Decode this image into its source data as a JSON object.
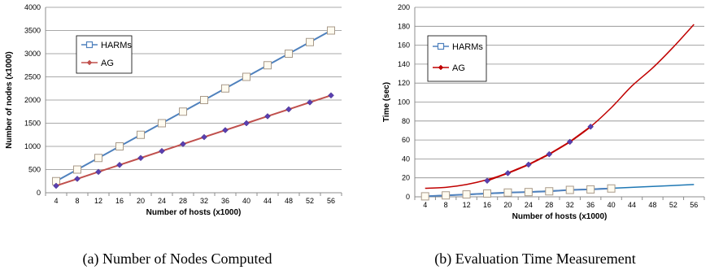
{
  "chart_data": [
    {
      "type": "line",
      "caption": "(a) Number of Nodes Computed",
      "title": "",
      "xlabel": "Number of hosts (x1000)",
      "ylabel": "Number of nodes (x1000)",
      "categories": [
        "4",
        "8",
        "12",
        "16",
        "20",
        "24",
        "28",
        "32",
        "36",
        "40",
        "44",
        "48",
        "52",
        "56"
      ],
      "ylim": [
        0,
        4000
      ],
      "yticks": [
        0,
        500,
        1000,
        1500,
        2000,
        2500,
        3000,
        3500,
        4000
      ],
      "grid": "horizontal",
      "legend": "left",
      "series": [
        {
          "name": "HARMs",
          "color": "#4f81bd",
          "marker": "square",
          "values": [
            250,
            500,
            750,
            1000,
            1250,
            1500,
            1750,
            2000,
            2250,
            2500,
            2750,
            3000,
            3250,
            3500
          ]
        },
        {
          "name": "AG",
          "color": "#c0504d",
          "marker": "diamond",
          "values": [
            150,
            300,
            450,
            600,
            750,
            900,
            1050,
            1200,
            1350,
            1500,
            1650,
            1800,
            1950,
            2100
          ]
        }
      ]
    },
    {
      "type": "line",
      "caption": "(b) Evaluation Time Measurement",
      "title": "",
      "xlabel": "Number of hosts (x1000)",
      "ylabel": "Time (sec)",
      "categories": [
        "4",
        "8",
        "12",
        "16",
        "20",
        "24",
        "28",
        "32",
        "36",
        "40",
        "44",
        "48",
        "52",
        "56"
      ],
      "ylim": [
        0,
        200
      ],
      "yticks": [
        0,
        20,
        40,
        60,
        80,
        100,
        120,
        140,
        160,
        180,
        200
      ],
      "grid": "horizontal",
      "legend": "left",
      "series": [
        {
          "name": "HARMs",
          "color": "#4f81bd",
          "marker": "square",
          "values": [
            0.5,
            1.5,
            2.5,
            3.5,
            4.5,
            5,
            5.8,
            7.3,
            7.8,
            8.8,
            null,
            null,
            null,
            null
          ],
          "trend": [
            0.5,
            1.5,
            2.4,
            3.3,
            4.3,
            5.2,
            6.2,
            7.1,
            8.1,
            9.0,
            10.0,
            11.0,
            11.9,
            13.0
          ],
          "trend_color": "#1f78b4"
        },
        {
          "name": "AG",
          "color": "#c00000",
          "marker": "diamond",
          "values": [
            null,
            null,
            null,
            17,
            25,
            34,
            45,
            58,
            74,
            null,
            null,
            null,
            null,
            null
          ],
          "trend": [
            9,
            10,
            13,
            18,
            25,
            34,
            45,
            58,
            74,
            94,
            117,
            136,
            158,
            182
          ],
          "trend_color": "#c00000"
        }
      ]
    }
  ]
}
